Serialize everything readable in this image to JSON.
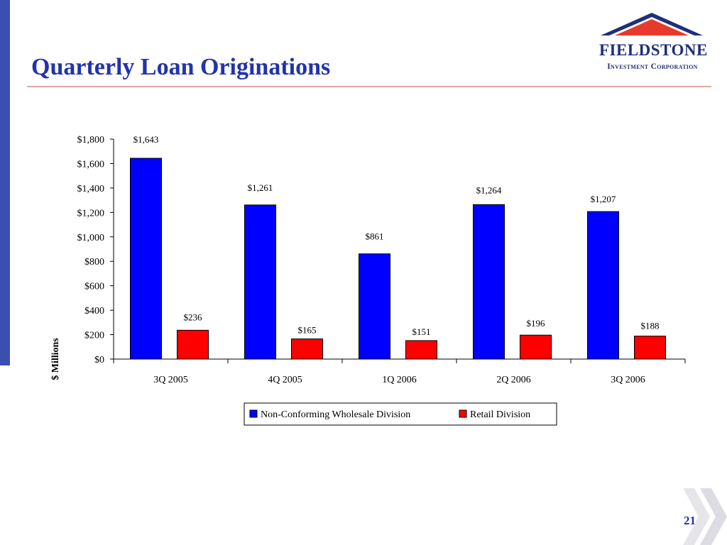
{
  "slide": {
    "title": "Quarterly Loan Originations",
    "page_number": "21"
  },
  "logo": {
    "name": "FIELDSTONE",
    "subtitle": "Investment Corporation",
    "icon": "house-roof-icon"
  },
  "colors": {
    "title": "#2233aa",
    "series_wholesale": "#0000ff",
    "series_retail": "#ff0000",
    "left_bar": "#3a4fb0"
  },
  "chart_data": {
    "type": "bar",
    "ylabel": "$ Millions",
    "xlabel": "",
    "categories": [
      "3Q 2005",
      "4Q 2005",
      "1Q 2006",
      "2Q 2006",
      "3Q 2006"
    ],
    "ylim": [
      0,
      1800
    ],
    "y_ticks": [
      0,
      200,
      400,
      600,
      800,
      1000,
      1200,
      1400,
      1600,
      1800
    ],
    "y_tick_labels": [
      "$0",
      "$200",
      "$400",
      "$600",
      "$800",
      "$1,000",
      "$1,200",
      "$1,400",
      "$1,600",
      "$1,800"
    ],
    "series": [
      {
        "name": "Non-Conforming Wholesale Division",
        "values": [
          1643,
          1261,
          861,
          1264,
          1207
        ],
        "labels": [
          "$1,643",
          "$1,261",
          "$861",
          "$1,264",
          "$1,207"
        ],
        "color": "#0000ff"
      },
      {
        "name": "Retail Division",
        "values": [
          236,
          165,
          151,
          196,
          188
        ],
        "labels": [
          "$236",
          "$165",
          "$151",
          "$196",
          "$188"
        ],
        "color": "#ff0000"
      }
    ],
    "legend_position": "bottom",
    "grid": false
  }
}
